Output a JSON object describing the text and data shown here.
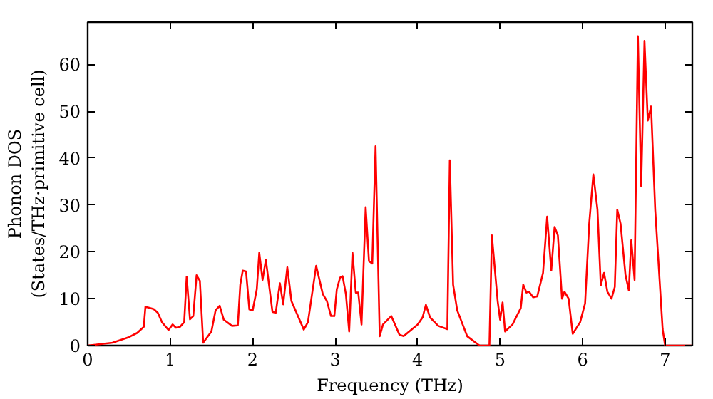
{
  "chart_data": {
    "type": "line",
    "xlabel": "Frequency (THz)",
    "ylabel": "Phonon DOS\n(States/THz·primitive cell)",
    "x": [
      0,
      0.3,
      0.5,
      0.6,
      0.68,
      0.7,
      0.8,
      0.85,
      0.9,
      0.98,
      1.03,
      1.07,
      1.12,
      1.17,
      1.2,
      1.24,
      1.28,
      1.32,
      1.36,
      1.4,
      1.5,
      1.55,
      1.6,
      1.65,
      1.75,
      1.82,
      1.85,
      1.88,
      1.92,
      1.96,
      2.0,
      2.05,
      2.08,
      2.12,
      2.16,
      2.24,
      2.28,
      2.33,
      2.37,
      2.42,
      2.47,
      2.62,
      2.67,
      2.77,
      2.85,
      2.9,
      2.95,
      2.99,
      3.02,
      3.06,
      3.09,
      3.13,
      3.17,
      3.21,
      3.25,
      3.28,
      3.32,
      3.37,
      3.41,
      3.45,
      3.49,
      3.54,
      3.58,
      3.68,
      3.78,
      3.83,
      4.0,
      4.06,
      4.1,
      4.15,
      4.25,
      4.36,
      4.39,
      4.43,
      4.48,
      4.6,
      4.75,
      4.87,
      4.9,
      4.97,
      5.0,
      5.03,
      5.06,
      5.15,
      5.25,
      5.28,
      5.32,
      5.35,
      5.4,
      5.45,
      5.52,
      5.57,
      5.62,
      5.66,
      5.7,
      5.75,
      5.78,
      5.83,
      5.88,
      5.97,
      6.03,
      6.08,
      6.13,
      6.18,
      6.22,
      6.26,
      6.3,
      6.35,
      6.39,
      6.42,
      6.46,
      6.52,
      6.56,
      6.59,
      6.63,
      6.67,
      6.71,
      6.75,
      6.79,
      6.83,
      6.88,
      6.97,
      7.0,
      7.33
    ],
    "series": [
      {
        "color": "#ff0000",
        "values": [
          0,
          0.6,
          1.8,
          2.7,
          4,
          8.3,
          7.8,
          7,
          5,
          3.3,
          4.5,
          3.8,
          4,
          5,
          14.7,
          5.6,
          6.3,
          15,
          13.8,
          0.6,
          3,
          7.5,
          8.5,
          5.5,
          4.2,
          4.3,
          13,
          16,
          15.8,
          7.7,
          7.5,
          12,
          19.8,
          14,
          18.3,
          7.2,
          7,
          13.3,
          8.8,
          16.7,
          9.5,
          3.4,
          5,
          17,
          11,
          9.5,
          6.3,
          6.3,
          12,
          14.5,
          14.8,
          11,
          3,
          19.8,
          11.3,
          11.3,
          4.5,
          29.5,
          18,
          17.5,
          42.5,
          2,
          4.5,
          6.3,
          2.3,
          2,
          4.5,
          6,
          8.7,
          6,
          4.2,
          3.5,
          39.5,
          13,
          7.5,
          2,
          0,
          0,
          23.5,
          9.5,
          5.5,
          9.2,
          3,
          4.5,
          8,
          13,
          11.3,
          11.5,
          10.3,
          10.5,
          15.5,
          27.5,
          16,
          25.3,
          23.5,
          10,
          11.5,
          10,
          2.5,
          5,
          9,
          26,
          36.5,
          29,
          12.8,
          15.5,
          11.5,
          10,
          12.5,
          29,
          26,
          15,
          11.8,
          22.5,
          14,
          66,
          34,
          65,
          48,
          51,
          29,
          3.5,
          0,
          0
        ]
      }
    ],
    "xlim": [
      0,
      7.33
    ],
    "ylim": [
      0,
      69
    ],
    "xticks": [
      0,
      1,
      2,
      3,
      4,
      5,
      6,
      7
    ],
    "yticks": [
      0,
      10,
      20,
      30,
      40,
      50,
      60
    ],
    "grid": false,
    "marker": "none",
    "line_style": "solid"
  }
}
